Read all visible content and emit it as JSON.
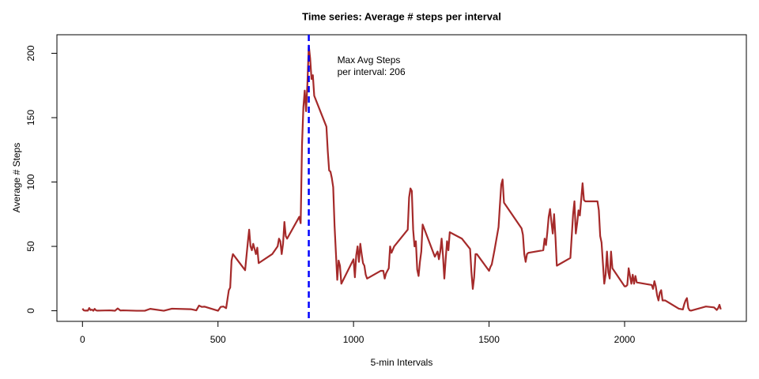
{
  "chart_data": {
    "type": "line",
    "title": "Time series: Average # steps per interval",
    "x_label": "5-min Intervals",
    "y_label": "Average # Steps",
    "annotation": [
      "Max Avg Steps",
      "per interval:  206"
    ],
    "annotation_position": [
      940,
      190
    ],
    "max_line": {
      "x": 835,
      "color": "#0000ff"
    },
    "xlim": [
      -94.2,
      2449.2
    ],
    "ylim": [
      -8.24,
      214.4
    ],
    "xticks": [
      0,
      500,
      1000,
      1500,
      2000
    ],
    "yticks": [
      0,
      50,
      100,
      150,
      200
    ],
    "x": [
      0,
      5,
      10,
      15,
      20,
      25,
      30,
      35,
      40,
      45,
      50,
      55,
      100,
      110,
      120,
      130,
      140,
      150,
      200,
      230,
      250,
      300,
      330,
      400,
      420,
      430,
      440,
      450,
      500,
      510,
      520,
      530,
      540,
      545,
      550,
      555,
      600,
      610,
      615,
      620,
      625,
      630,
      640,
      645,
      650,
      700,
      720,
      725,
      730,
      735,
      740,
      745,
      750,
      755,
      800,
      805,
      810,
      815,
      820,
      825,
      830,
      835,
      840,
      845,
      850,
      855,
      900,
      905,
      910,
      915,
      920,
      925,
      930,
      935,
      940,
      945,
      950,
      955,
      1000,
      1005,
      1010,
      1015,
      1020,
      1025,
      1030,
      1035,
      1040,
      1045,
      1050,
      1100,
      1110,
      1115,
      1120,
      1130,
      1135,
      1140,
      1150,
      1200,
      1205,
      1210,
      1215,
      1220,
      1225,
      1230,
      1235,
      1240,
      1245,
      1250,
      1255,
      1300,
      1310,
      1315,
      1320,
      1325,
      1330,
      1335,
      1340,
      1345,
      1350,
      1355,
      1400,
      1430,
      1435,
      1440,
      1445,
      1450,
      1455,
      1500,
      1505,
      1510,
      1520,
      1535,
      1540,
      1545,
      1550,
      1555,
      1620,
      1625,
      1630,
      1635,
      1640,
      1645,
      1700,
      1705,
      1710,
      1715,
      1720,
      1725,
      1730,
      1735,
      1740,
      1745,
      1750,
      1800,
      1805,
      1810,
      1815,
      1820,
      1825,
      1830,
      1835,
      1845,
      1850,
      1855,
      1900,
      1905,
      1910,
      1915,
      1920,
      1925,
      1930,
      1935,
      1940,
      1945,
      1950,
      1955,
      2000,
      2005,
      2010,
      2015,
      2020,
      2025,
      2030,
      2035,
      2040,
      2045,
      2100,
      2105,
      2110,
      2115,
      2120,
      2125,
      2130,
      2135,
      2140,
      2150,
      2200,
      2215,
      2220,
      2225,
      2230,
      2235,
      2240,
      2245,
      2300,
      2330,
      2340,
      2345,
      2350,
      2355
    ],
    "series": [
      {
        "name": "Average steps",
        "color": "#a52a2a",
        "values": [
          1.7,
          0.3,
          0.1,
          0.2,
          0.1,
          2.1,
          0.5,
          0.9,
          0,
          1.5,
          0.3,
          0.1,
          0.3,
          0.2,
          0,
          1.8,
          0.2,
          0.3,
          0,
          0,
          1.5,
          0,
          1.6,
          1.2,
          0.3,
          4,
          3,
          3.2,
          0,
          3,
          3.3,
          2,
          16,
          18,
          39,
          44,
          31.5,
          53,
          63,
          50,
          47,
          52,
          44,
          49,
          37,
          44,
          50,
          56,
          54,
          44,
          52,
          69,
          58,
          56,
          73,
          68,
          129,
          158,
          171,
          155,
          177,
          206,
          196,
          180,
          183,
          167,
          143,
          124,
          109,
          108,
          103,
          96,
          66,
          45,
          24,
          39,
          35,
          21,
          40,
          26,
          43,
          50,
          38,
          52,
          44,
          37,
          35,
          28,
          25,
          31,
          31,
          25,
          29,
          33,
          50,
          45,
          50,
          63,
          88,
          95,
          93,
          63,
          50,
          54,
          32,
          27,
          38,
          46,
          67,
          42,
          46,
          40,
          46,
          56,
          43,
          25,
          40,
          54,
          47,
          61,
          56,
          48,
          30,
          17,
          26,
          44,
          44,
          31,
          34,
          36,
          47,
          65,
          82,
          98,
          102,
          84,
          64,
          59,
          44,
          38,
          44,
          45,
          47,
          56,
          51,
          61,
          73,
          79,
          69,
          60,
          75,
          57,
          35,
          41,
          58,
          75,
          85,
          60,
          68,
          78,
          74,
          99,
          86,
          85,
          85,
          78,
          58,
          53,
          37,
          21,
          28,
          46,
          30,
          25,
          46,
          33,
          19,
          19,
          20,
          33,
          27,
          21,
          28,
          21,
          27,
          22,
          20,
          17,
          23,
          19,
          12,
          8,
          14,
          16,
          8,
          8,
          1.6,
          1,
          5,
          8,
          9.8,
          2.2,
          0.3,
          0.1,
          3.3,
          2.6,
          0.6,
          2,
          4.6,
          1.1
        ]
      }
    ]
  }
}
